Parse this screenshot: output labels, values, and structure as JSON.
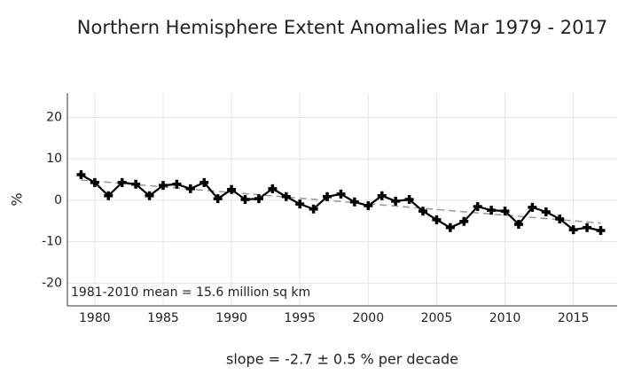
{
  "chart_data": {
    "type": "line",
    "title": "Northern Hemisphere Extent Anomalies Mar 1979 - 2017",
    "y_label": "%",
    "x_label": "slope = -2.7 ± 0.5 % per decade",
    "annotation": "1981-2010 mean = 15.6 million sq km",
    "x": [
      1979,
      1980,
      1981,
      1982,
      1983,
      1984,
      1985,
      1986,
      1987,
      1988,
      1989,
      1990,
      1991,
      1992,
      1993,
      1994,
      1995,
      1996,
      1997,
      1998,
      1999,
      2000,
      2001,
      2002,
      2003,
      2004,
      2005,
      2006,
      2007,
      2008,
      2009,
      2010,
      2011,
      2012,
      2013,
      2014,
      2015,
      2016,
      2017
    ],
    "series": [
      {
        "color": "#000000",
        "values": [
          6.2,
          4.3,
          1.1,
          4.3,
          3.9,
          1.1,
          3.6,
          3.9,
          2.8,
          4.3,
          0.4,
          2.6,
          0.2,
          0.4,
          2.8,
          0.9,
          -0.9,
          -2.1,
          0.9,
          1.5,
          -0.4,
          -1.3,
          1.1,
          -0.2,
          0.2,
          -2.6,
          -4.7,
          -6.6,
          -5.1,
          -1.5,
          -2.4,
          -2.6,
          -5.8,
          -1.7,
          -2.8,
          -4.5,
          -7.1,
          -6.6,
          -7.3
        ]
      }
    ],
    "trend": {
      "color": "#999999",
      "x": [
        1979,
        2017
      ],
      "values": [
        4.9,
        -5.5
      ]
    },
    "xlim": [
      1978,
      2018.2
    ],
    "ylim": [
      -25.5,
      25.9
    ],
    "xticks": [
      1980,
      1985,
      1990,
      1995,
      2000,
      2005,
      2010,
      2015
    ],
    "yticks": [
      -20,
      -10,
      0,
      10,
      20
    ],
    "grid": true
  }
}
